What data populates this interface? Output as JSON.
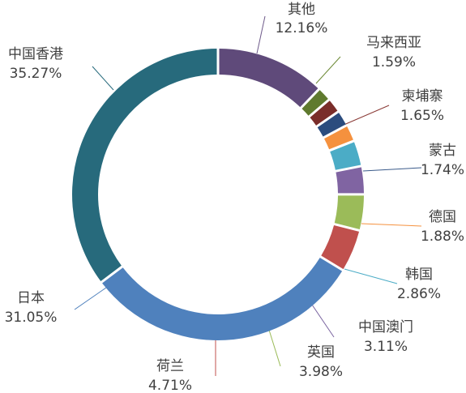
{
  "chart_data": {
    "type": "pie",
    "donut": true,
    "title": "",
    "slices": [
      {
        "label": "其他",
        "value": 12.16,
        "pct": "12.16%",
        "color": "#5f4a7a"
      },
      {
        "label": "马来西亚",
        "value": 1.59,
        "pct": "1.59%",
        "color": "#5f7a2e"
      },
      {
        "label": "柬埔寨",
        "value": 1.65,
        "pct": "1.65%",
        "color": "#7a2d2a"
      },
      {
        "label": "蒙古",
        "value": 1.74,
        "pct": "1.74%",
        "color": "#2b4c7e"
      },
      {
        "label": "德国",
        "value": 1.88,
        "pct": "1.88%",
        "color": "#f5913e"
      },
      {
        "label": "韩国",
        "value": 2.86,
        "pct": "2.86%",
        "color": "#4bacc6"
      },
      {
        "label": "中国澳门",
        "value": 3.11,
        "pct": "3.11%",
        "color": "#8064a2"
      },
      {
        "label": "英国",
        "value": 3.98,
        "pct": "3.98%",
        "color": "#9bbb59"
      },
      {
        "label": "荷兰",
        "value": 4.71,
        "pct": "4.71%",
        "color": "#c0504d"
      },
      {
        "label": "日本",
        "value": 31.05,
        "pct": "31.05%",
        "color": "#4f81bd"
      },
      {
        "label": "中国香港",
        "value": 35.27,
        "pct": "35.27%",
        "color": "#276a7c"
      }
    ]
  }
}
